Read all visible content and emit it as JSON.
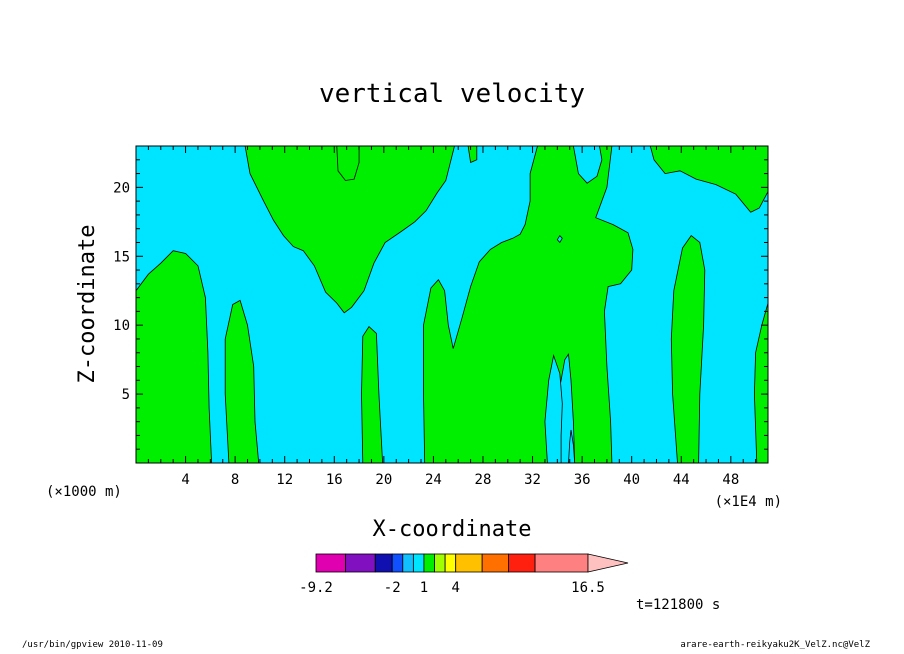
{
  "chart_data": {
    "type": "heatmap",
    "title": "vertical velocity",
    "xlabel": "X-coordinate",
    "ylabel": "Z-coordinate",
    "x_unit_label": "(×1000 m)",
    "x_scale_label": "(×1E4 m)",
    "x_ticks": [
      4,
      8,
      12,
      16,
      20,
      24,
      28,
      32,
      36,
      40,
      44,
      48
    ],
    "xlim": [
      0,
      51
    ],
    "y_ticks": [
      5,
      10,
      15,
      20
    ],
    "ylim": [
      0,
      23
    ],
    "time_label": "t=121800 s",
    "fill_colors": {
      "negative": "#00e5ff",
      "positive": "#00ee00"
    },
    "colorbar": {
      "labels": [
        "-9.2",
        "-2",
        "1",
        "4",
        "16.5"
      ],
      "levels": [
        -9.2,
        -6.4,
        -3.6,
        -2,
        -1,
        0,
        1,
        2,
        3,
        4,
        6.5,
        9,
        11.5,
        16.5
      ],
      "colors": [
        "#e000b0",
        "#8010c0",
        "#1010b0",
        "#1050ff",
        "#10c0ff",
        "#00e5ff",
        "#00ee00",
        "#a0ff00",
        "#ffff00",
        "#ffc000",
        "#ff7000",
        "#ff2010",
        "#ff8080"
      ],
      "extend_color": "#ffc0c0"
    },
    "positive_regions": [
      {
        "name": "region-a",
        "points": [
          [
            0,
            12.5
          ],
          [
            1,
            13.7
          ],
          [
            2,
            14.5
          ],
          [
            3,
            15.4
          ],
          [
            4,
            15.2
          ],
          [
            5,
            14.3
          ],
          [
            5.6,
            12
          ],
          [
            5.8,
            8
          ],
          [
            5.9,
            4
          ],
          [
            6.1,
            0
          ],
          [
            0,
            0
          ]
        ]
      },
      {
        "name": "region-b",
        "points": [
          [
            7.5,
            0
          ],
          [
            7.2,
            5
          ],
          [
            7.2,
            9
          ],
          [
            7.8,
            11.5
          ],
          [
            8.4,
            11.8
          ],
          [
            9,
            10
          ],
          [
            9.5,
            7
          ],
          [
            9.6,
            3
          ],
          [
            9.9,
            0
          ]
        ]
      },
      {
        "name": "region-c",
        "points": [
          [
            8.8,
            23
          ],
          [
            9.2,
            21
          ],
          [
            10.3,
            19
          ],
          [
            11.1,
            17.6
          ],
          [
            11.9,
            16.5
          ],
          [
            12.7,
            15.7
          ],
          [
            13.5,
            15.4
          ],
          [
            14.4,
            14.3
          ],
          [
            15.3,
            12.4
          ],
          [
            16.2,
            11.6
          ],
          [
            16.8,
            10.9
          ],
          [
            17.4,
            11.3
          ],
          [
            18.4,
            12.5
          ],
          [
            19.2,
            14.5
          ],
          [
            20.1,
            16
          ],
          [
            21.4,
            16.8
          ],
          [
            22.5,
            17.5
          ],
          [
            23.4,
            18.3
          ],
          [
            24.3,
            19.6
          ],
          [
            25,
            20.5
          ],
          [
            25.7,
            23
          ]
        ]
      },
      {
        "name": "region-d",
        "points": [
          [
            18.3,
            0
          ],
          [
            18.2,
            5
          ],
          [
            18.3,
            9.2
          ],
          [
            18.8,
            9.9
          ],
          [
            19.4,
            9.4
          ],
          [
            19.6,
            5
          ],
          [
            19.9,
            0
          ]
        ]
      },
      {
        "name": "region-e",
        "points": [
          [
            23.3,
            0
          ],
          [
            23.2,
            5
          ],
          [
            23.2,
            10
          ],
          [
            23.8,
            12.7
          ],
          [
            24.4,
            13.3
          ],
          [
            24.9,
            12.5
          ],
          [
            25.2,
            10
          ],
          [
            25.6,
            8.3
          ],
          [
            26.3,
            10.5
          ],
          [
            27,
            12.8
          ],
          [
            27.7,
            14.6
          ],
          [
            28.6,
            15.5
          ],
          [
            29.5,
            16
          ],
          [
            30.4,
            16.3
          ],
          [
            31,
            16.6
          ],
          [
            31.4,
            17.3
          ],
          [
            31.8,
            19
          ],
          [
            31.8,
            21
          ],
          [
            32.4,
            23
          ],
          [
            38.4,
            23
          ],
          [
            38,
            20
          ],
          [
            37.1,
            17.8
          ],
          [
            38.5,
            17.3
          ],
          [
            39.7,
            16.7
          ],
          [
            40.1,
            15.5
          ],
          [
            40,
            14
          ],
          [
            39.1,
            13
          ],
          [
            38.1,
            12.8
          ],
          [
            37.8,
            11
          ],
          [
            38,
            7
          ],
          [
            38.3,
            3
          ],
          [
            38.4,
            0
          ],
          [
            35.4,
            0
          ],
          [
            35.3,
            3
          ],
          [
            35.1,
            6
          ],
          [
            34.9,
            7.9
          ],
          [
            34.6,
            7.5
          ],
          [
            34.1,
            5
          ],
          [
            33.7,
            2
          ],
          [
            33.6,
            0
          ]
        ]
      },
      {
        "name": "region-f",
        "points": [
          [
            43.7,
            0
          ],
          [
            43.3,
            5
          ],
          [
            43.2,
            9
          ],
          [
            43.4,
            12.5
          ],
          [
            44.1,
            15.6
          ],
          [
            44.8,
            16.5
          ],
          [
            45.5,
            16
          ],
          [
            45.9,
            14
          ],
          [
            45.8,
            10
          ],
          [
            45.5,
            5
          ],
          [
            45.4,
            0
          ]
        ]
      },
      {
        "name": "region-g",
        "points": [
          [
            50.1,
            0
          ],
          [
            49.9,
            5
          ],
          [
            50,
            8
          ],
          [
            50.5,
            10
          ],
          [
            51,
            11.6
          ],
          [
            51,
            0
          ]
        ]
      },
      {
        "name": "region-h",
        "points": [
          [
            41.5,
            23
          ],
          [
            41.8,
            22
          ],
          [
            42.7,
            21
          ],
          [
            43.9,
            21.2
          ],
          [
            45.2,
            20.6
          ],
          [
            46.8,
            20.2
          ],
          [
            48.4,
            19.5
          ],
          [
            49.6,
            18.2
          ],
          [
            50.3,
            18.5
          ],
          [
            51,
            19.7
          ],
          [
            51,
            23
          ]
        ]
      },
      {
        "name": "region-i",
        "points": [
          [
            16.2,
            23
          ],
          [
            16.3,
            21.2
          ],
          [
            16.9,
            20.5
          ],
          [
            17.6,
            20.6
          ],
          [
            18,
            21.8
          ],
          [
            18,
            23
          ]
        ]
      },
      {
        "name": "region-j",
        "points": [
          [
            26.8,
            23
          ],
          [
            27,
            21.8
          ],
          [
            27.5,
            22
          ],
          [
            27.5,
            23
          ]
        ]
      }
    ],
    "negative_islands": [
      {
        "name": "island-a",
        "points": [
          [
            35.3,
            23
          ],
          [
            35.7,
            21
          ],
          [
            36.4,
            20.3
          ],
          [
            37.2,
            20.8
          ],
          [
            37.6,
            22
          ],
          [
            37.4,
            23
          ]
        ]
      },
      {
        "name": "island-b",
        "points": [
          [
            33.2,
            0
          ],
          [
            33.0,
            3
          ],
          [
            33.3,
            6
          ],
          [
            33.7,
            7.8
          ],
          [
            34.2,
            6.5
          ],
          [
            34.4,
            4.3
          ],
          [
            34.3,
            2
          ],
          [
            34.3,
            0
          ]
        ]
      },
      {
        "name": "island-c",
        "points": [
          [
            34.9,
            0
          ],
          [
            35.0,
            1.5
          ],
          [
            35.1,
            2.4
          ],
          [
            35.3,
            1.3
          ],
          [
            35.4,
            0
          ]
        ]
      },
      {
        "name": "island-d",
        "points": [
          [
            34.0,
            16.2
          ],
          [
            34.2,
            16.5
          ],
          [
            34.4,
            16.3
          ],
          [
            34.2,
            16.0
          ]
        ]
      }
    ]
  },
  "footer": {
    "left": "/usr/bin/gpview   2010-11-09",
    "right": "arare-earth-reikyaku2K_VelZ.nc@VelZ"
  }
}
